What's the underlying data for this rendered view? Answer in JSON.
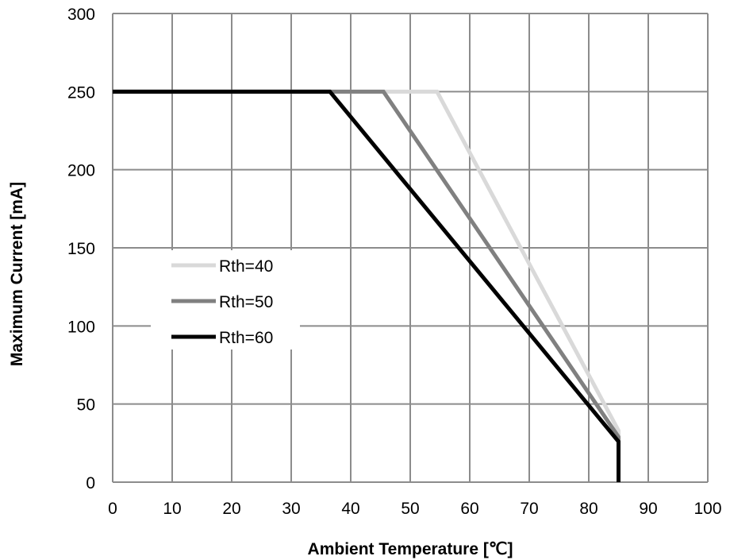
{
  "chart_data": {
    "type": "line",
    "title": "",
    "xlabel": "Ambient Temperature [℃]",
    "ylabel": "Maximum Current [mA]",
    "xlim": [
      0,
      100
    ],
    "ylim": [
      0,
      300
    ],
    "xticks": [
      0,
      10,
      20,
      30,
      40,
      50,
      60,
      70,
      80,
      90,
      100
    ],
    "yticks": [
      0,
      50,
      100,
      150,
      200,
      250,
      300
    ],
    "grid": true,
    "legend_position": "center-left",
    "series": [
      {
        "name": "Rth=40",
        "color": "#d9d9d9",
        "x": [
          0,
          54.5,
          85,
          85
        ],
        "y": [
          250,
          250,
          33,
          0
        ]
      },
      {
        "name": "Rth=50",
        "color": "#808080",
        "x": [
          0,
          45.5,
          85,
          85
        ],
        "y": [
          250,
          250,
          29,
          0
        ]
      },
      {
        "name": "Rth=60",
        "color": "#000000",
        "x": [
          0,
          36.5,
          85,
          85
        ],
        "y": [
          250,
          250,
          26,
          0
        ]
      }
    ]
  }
}
